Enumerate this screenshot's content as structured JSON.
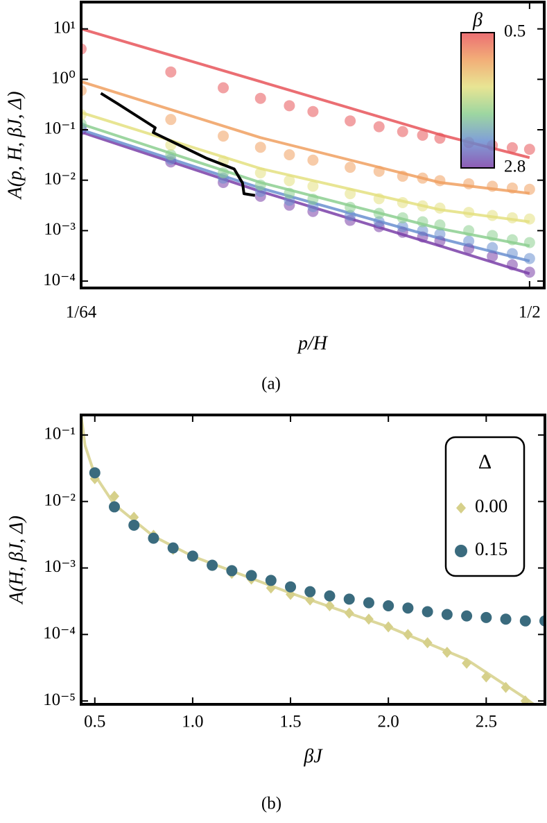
{
  "chart_data": [
    {
      "type": "scatter",
      "xscale": "log",
      "yscale": "log",
      "ylabel": "A(p, H, βJ, Δ)",
      "xlabel": "p/H",
      "caption": "(a)",
      "xlim": [
        0.015625,
        0.56
      ],
      "ylim": [
        7.3e-05,
        34
      ],
      "xticks": [
        {
          "value": 0.015625,
          "label": "1/64"
        },
        {
          "value": 0.5,
          "label": "1/2"
        }
      ],
      "yticks": [
        {
          "value": 10,
          "label": "10¹"
        },
        {
          "value": 1,
          "label": "10⁰"
        },
        {
          "value": 0.1,
          "label": "10⁻¹"
        },
        {
          "value": 0.01,
          "label": "10⁻²"
        },
        {
          "value": 0.001,
          "label": "10⁻³"
        },
        {
          "value": 0.0001,
          "label": "10⁻⁴"
        }
      ],
      "alpha": 0.55,
      "x": [
        0.015625,
        0.03125,
        0.046875,
        0.0625,
        0.078125,
        0.09375,
        0.125,
        0.15625,
        0.1875,
        0.21875,
        0.25,
        0.3125,
        0.375,
        0.4375,
        0.5
      ],
      "fit_x": [
        0.015625,
        0.0625,
        0.25,
        0.5
      ],
      "series": [
        {
          "color": "#7a3fa8",
          "marker": "circle",
          "values": [
            0.1,
            0.023,
            0.009,
            0.0048,
            0.0032,
            0.0024,
            0.0016,
            0.0012,
            0.00093,
            0.00075,
            0.00062,
            0.00044,
            0.00031,
            0.00021,
            0.00015
          ],
          "fit": [
            0.09,
            0.006,
            0.0005,
            0.00014
          ]
        },
        {
          "color": "#6a8fd0",
          "marker": "circle",
          "values": [
            0.11,
            0.026,
            0.011,
            0.006,
            0.004,
            0.003,
            0.002,
            0.0015,
            0.0012,
            0.001,
            0.00085,
            0.00062,
            0.00046,
            0.00035,
            0.00028
          ],
          "fit": [
            0.1,
            0.007,
            0.0007,
            0.00025
          ]
        },
        {
          "color": "#8ccf90",
          "marker": "circle",
          "values": [
            0.13,
            0.032,
            0.014,
            0.008,
            0.0055,
            0.0042,
            0.0029,
            0.0022,
            0.0018,
            0.0015,
            0.0013,
            0.001,
            0.0008,
            0.00066,
            0.00058
          ],
          "fit": [
            0.13,
            0.009,
            0.0011,
            0.0005
          ]
        },
        {
          "color": "#e4e080",
          "marker": "circle",
          "values": [
            0.2,
            0.05,
            0.024,
            0.014,
            0.0098,
            0.0076,
            0.0054,
            0.0043,
            0.0036,
            0.0031,
            0.0028,
            0.0023,
            0.002,
            0.0018,
            0.0017
          ],
          "fit": [
            0.22,
            0.017,
            0.0026,
            0.0015
          ]
        },
        {
          "color": "#f0a060",
          "marker": "circle",
          "values": [
            0.6,
            0.16,
            0.075,
            0.045,
            0.032,
            0.025,
            0.018,
            0.015,
            0.012,
            0.011,
            0.0098,
            0.0085,
            0.0076,
            0.007,
            0.0066
          ],
          "fit": [
            0.9,
            0.07,
            0.009,
            0.0055
          ]
        },
        {
          "color": "#e8555a",
          "marker": "circle",
          "values": [
            4.0,
            1.4,
            0.68,
            0.42,
            0.3,
            0.23,
            0.15,
            0.115,
            0.092,
            0.078,
            0.068,
            0.056,
            0.049,
            0.044,
            0.041
          ],
          "fit": [
            10,
            0.9,
            0.08,
            0.028
          ]
        }
      ],
      "trace": {
        "color": "#000000",
        "x": [
          0.0182,
          0.0207,
          0.0277,
          0.0273,
          0.0413,
          0.051,
          0.0544,
          0.055,
          0.0599
        ],
        "values": [
          0.53,
          0.33,
          0.11,
          0.088,
          0.027,
          0.0167,
          0.0088,
          0.0054,
          0.005
        ]
      },
      "colorbar": {
        "label": "β",
        "clim": [
          0.5,
          2.8
        ],
        "ticks": [
          0.5,
          2.8
        ],
        "colors": [
          "#e8555a",
          "#f0a060",
          "#e4e080",
          "#8ccf90",
          "#6a8fd0",
          "#7a3fa8"
        ]
      }
    },
    {
      "type": "scatter",
      "xscale": "linear",
      "yscale": "log",
      "ylabel": "A(H, βJ, Δ)",
      "xlabel": "βJ",
      "caption": "(b)",
      "xlim": [
        0.43,
        2.8
      ],
      "ylim": [
        8.9e-06,
        0.2
      ],
      "xticks": [
        0.5,
        {
          "value": 1,
          "label": "1.0"
        },
        1.5,
        {
          "value": 2,
          "label": "2.0"
        },
        2.5
      ],
      "yticks": [
        {
          "value": 0.1,
          "label": "10⁻¹"
        },
        {
          "value": 0.01,
          "label": "10⁻²"
        },
        {
          "value": 0.001,
          "label": "10⁻³"
        },
        {
          "value": 0.0001,
          "label": "10⁻⁴"
        },
        {
          "value": 1e-05,
          "label": "10⁻⁵"
        }
      ],
      "alpha": 1,
      "x": [
        0.5,
        0.6,
        0.7,
        0.8,
        0.9,
        1.0,
        1.1,
        1.2,
        1.3,
        1.4,
        1.5,
        1.6,
        1.7,
        1.8,
        1.9,
        2.0,
        2.1,
        2.2,
        2.3,
        2.4,
        2.5,
        2.6,
        2.7,
        2.8
      ],
      "fit_x": [
        0.43,
        0.45,
        0.5,
        0.6,
        0.8,
        1.0,
        1.5,
        2.0,
        2.4,
        2.7,
        2.74
      ],
      "legend": {
        "title": "Δ",
        "loc": "upper right"
      },
      "series": [
        {
          "name": "0.00",
          "color": "#d6d08a",
          "marker": "diamond",
          "values": [
            0.022,
            0.012,
            0.0058,
            0.0031,
            0.0019,
            0.0015,
            0.00108,
            0.00083,
            0.00068,
            0.0005,
            0.0004,
            0.00033,
            0.00027,
            0.00021,
            0.00017,
            0.00013,
            0.0001,
            7.5e-05,
            5.4e-05,
            3.7e-05,
            2.3e-05,
            1.6e-05,
            1e-05,
            null
          ],
          "fit": [
            0.2,
            0.07,
            0.025,
            0.009,
            0.003,
            0.0015,
            0.00042,
            0.00013,
            4.2e-05,
            1.1e-05,
            9e-06
          ]
        },
        {
          "name": "0.15",
          "color": "#3a6b7e",
          "marker": "circle",
          "values": [
            0.027,
            0.0083,
            0.0044,
            0.0028,
            0.002,
            0.00151,
            0.0011,
            0.00091,
            0.00077,
            0.00065,
            0.00052,
            0.00044,
            0.00038,
            0.00034,
            0.0003,
            0.00027,
            0.00025,
            0.00022,
            0.0002,
            0.00019,
            0.00018,
            0.00017,
            0.00016,
            0.00016
          ]
        }
      ]
    }
  ]
}
